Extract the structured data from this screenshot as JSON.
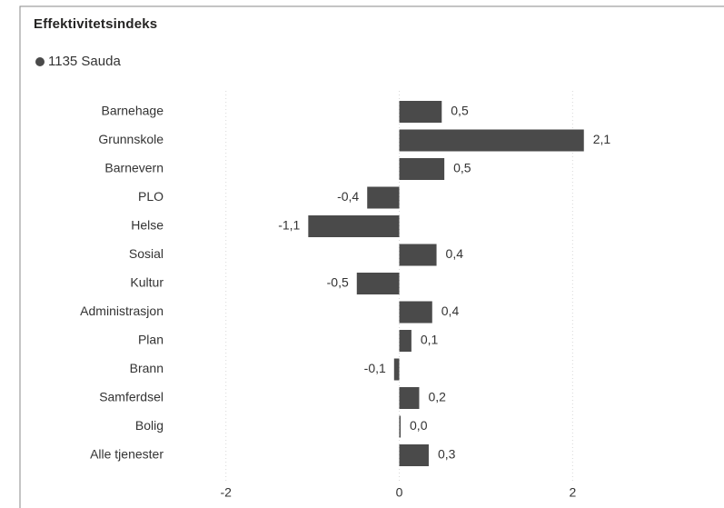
{
  "chart_data": {
    "type": "barh",
    "title": "Effektivitetsindeks",
    "categories": [
      "Barnehage",
      "Grunnskole",
      "Barnevern",
      "PLO",
      "Helse",
      "Sosial",
      "Kultur",
      "Administrasjon",
      "Plan",
      "Brann",
      "Samferdsel",
      "Bolig",
      "Alle tjenester"
    ],
    "series": [
      {
        "name": "1135 Sauda",
        "color": "#4a4a4a",
        "values": [
          0.49,
          2.13,
          0.52,
          -0.37,
          -1.05,
          0.43,
          -0.49,
          0.38,
          0.14,
          -0.06,
          0.23,
          0.01,
          0.34
        ],
        "value_labels": [
          "0,5",
          "2,1",
          "0,5",
          "-0,4",
          "-1,1",
          "0,4",
          "-0,5",
          "0,4",
          "0,1",
          "-0,1",
          "0,2",
          "0,0",
          "0,3"
        ]
      }
    ],
    "xlim": [
      -2.5,
      3.6
    ],
    "xticks": [
      -2,
      0,
      2
    ],
    "grid": true
  }
}
